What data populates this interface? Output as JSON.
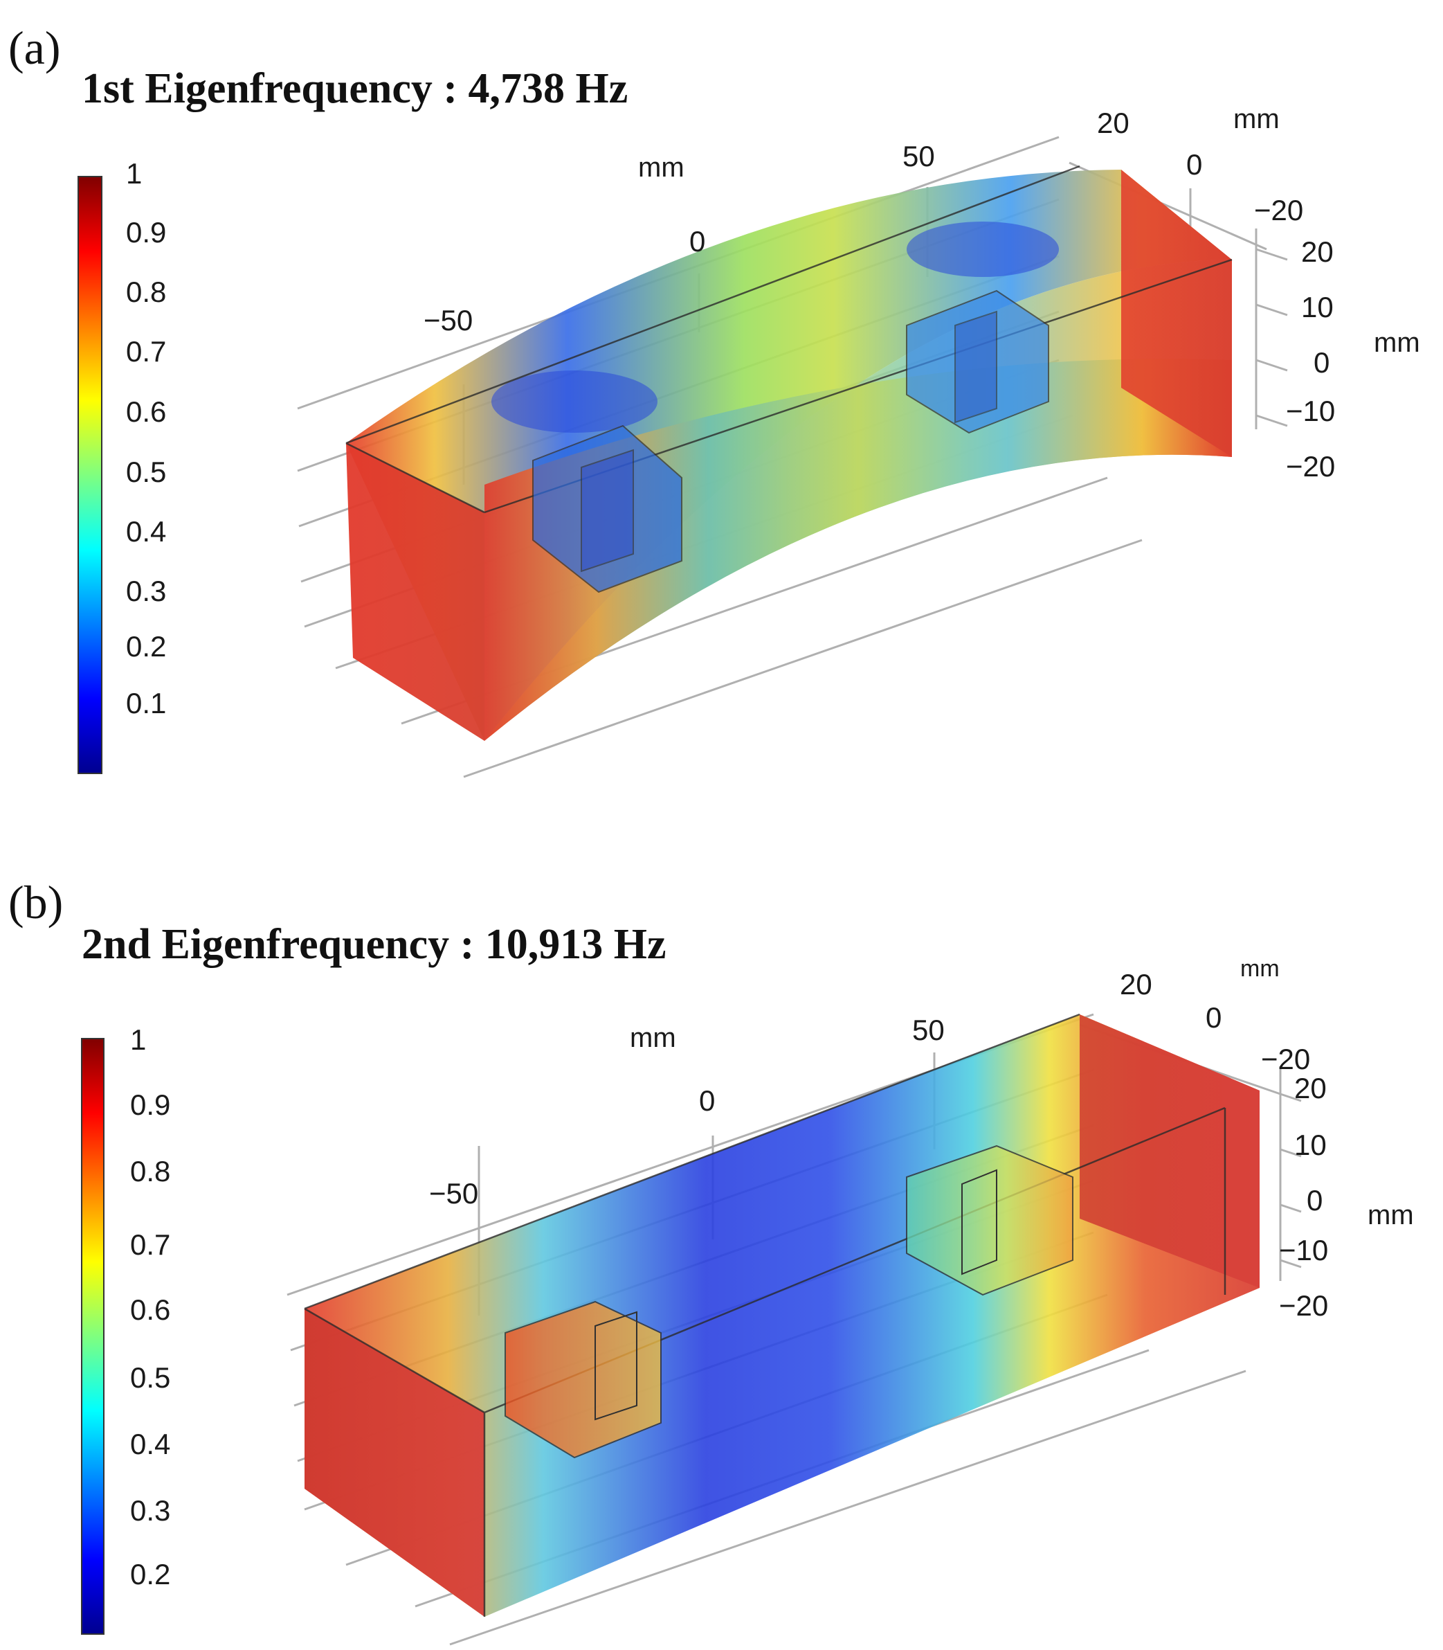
{
  "panels": [
    {
      "label": "(a)",
      "title": "1st Eigenfrequency : 4,738 Hz",
      "colorbar": {
        "ticks": [
          "1",
          "0.9",
          "0.8",
          "0.7",
          "0.6",
          "0.5",
          "0.4",
          "0.3",
          "0.2",
          "0.1"
        ],
        "range": [
          0,
          1
        ]
      },
      "axis_x": {
        "unit": "mm",
        "ticks": [
          "−50",
          "0",
          "50"
        ]
      },
      "axis_y": {
        "unit": "mm",
        "ticks": [
          "20",
          "0",
          "−20"
        ]
      },
      "axis_z": {
        "unit": "mm",
        "ticks": [
          "20",
          "10",
          "0",
          "−10",
          "−20"
        ]
      }
    },
    {
      "label": "(b)",
      "title": "2nd Eigenfrequency : 10,913 Hz",
      "colorbar": {
        "ticks": [
          "1",
          "0.9",
          "0.8",
          "0.7",
          "0.6",
          "0.5",
          "0.4",
          "0.3",
          "0.2"
        ],
        "range": [
          0.15,
          1
        ]
      },
      "axis_x": {
        "unit": "mm",
        "ticks": [
          "−50",
          "0",
          "50"
        ]
      },
      "axis_y": {
        "unit": "mm",
        "ticks": [
          "20",
          "0",
          "−20"
        ]
      },
      "axis_z": {
        "unit": "mm",
        "ticks": [
          "20",
          "10",
          "0",
          "−10",
          "−20"
        ]
      }
    }
  ],
  "colors": {
    "jet_low": "#00008f",
    "jet_mid": "#ffff00",
    "jet_high": "#800000",
    "grid": "#b0b0b0"
  }
}
